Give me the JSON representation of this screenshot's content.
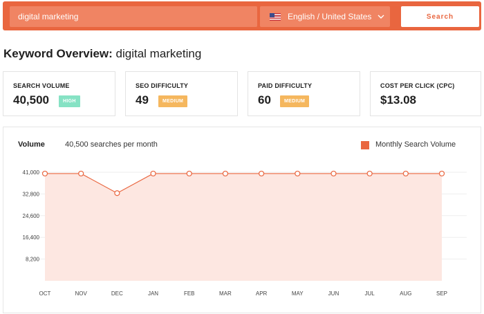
{
  "search": {
    "keyword": "digital marketing",
    "language": "English / United States",
    "button_label": "Search",
    "flag_icon": "us-flag-icon",
    "dropdown_icon": "chevron-down-icon"
  },
  "page": {
    "title_prefix": "Keyword Overview:",
    "title_keyword": "digital marketing"
  },
  "metrics": [
    {
      "label": "SEARCH VOLUME",
      "value": "40,500",
      "badge": "HIGH",
      "badge_color": "#86e2c4"
    },
    {
      "label": "SEO DIFFICULTY",
      "value": "49",
      "badge": "MEDIUM",
      "badge_color": "#f5b75e"
    },
    {
      "label": "PAID DIFFICULTY",
      "value": "60",
      "badge": "MEDIUM",
      "badge_color": "#f5b75e"
    },
    {
      "label": "COST PER CLICK (CPC)",
      "value": "$13.08"
    }
  ],
  "volume_panel": {
    "title": "Volume",
    "subtitle": "40,500 searches per month",
    "legend": "Monthly Search Volume"
  },
  "colors": {
    "accent": "#e9663f",
    "area_fill": "#fde7e1",
    "grid": "#eeeeee"
  },
  "chart_data": {
    "type": "area",
    "categories": [
      "OCT",
      "NOV",
      "DEC",
      "JAN",
      "FEB",
      "MAR",
      "APR",
      "MAY",
      "JUN",
      "JUL",
      "AUG",
      "SEP"
    ],
    "series": [
      {
        "name": "Monthly Search Volume",
        "values": [
          40500,
          40500,
          33100,
          40500,
          40500,
          40500,
          40500,
          40500,
          40500,
          40500,
          40500,
          40500
        ]
      }
    ],
    "yticks": [
      "41,000",
      "32,800",
      "24,600",
      "16,400",
      "8,200"
    ],
    "ylim": [
      0,
      41000
    ],
    "grid": true,
    "legend_position": "top-right"
  }
}
